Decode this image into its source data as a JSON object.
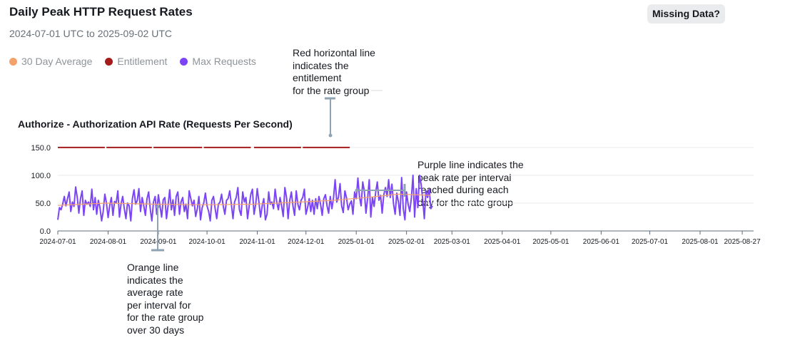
{
  "header": {
    "title": "Daily Peak HTTP Request Rates",
    "date_range": "2024-07-01 UTC to 2025-09-02 UTC",
    "missing_data_label": "Missing Data?"
  },
  "legend": [
    {
      "label": "30 Day Average",
      "color": "#f4a26c"
    },
    {
      "label": "Entitlement",
      "color": "#a51b1b"
    },
    {
      "label": "Max Requests",
      "color": "#7b45f5"
    }
  ],
  "annotations": {
    "red": [
      "Red horizontal line",
      "indicates the",
      "entitlement",
      "for the rate group"
    ],
    "purple": [
      "Purple line indicates the",
      "peak rate per interval",
      "reached during each",
      "day for the rate group"
    ],
    "orange": [
      "Orange line",
      "indicates the",
      "average rate",
      "per interval for",
      "for the rate group",
      "over 30 days"
    ]
  },
  "chart_data": {
    "type": "line",
    "title": "Authorize - Authorization API Rate (Requests Per Second)",
    "x_start": "2024-07-01",
    "xlim": [
      "2024-07-01",
      "2025-09-03"
    ],
    "ylim": [
      0,
      160
    ],
    "yticks": [
      0,
      50,
      100,
      150
    ],
    "ytick_labels": [
      "0.0",
      "50.0",
      "100.0",
      "150.0"
    ],
    "xticks": [
      "2024-07-01",
      "2024-08-01",
      "2024-09-01",
      "2024-10-01",
      "2024-11-01",
      "2024-12-01",
      "2025-01-01",
      "2025-02-01",
      "2025-03-01",
      "2025-04-01",
      "2025-05-01",
      "2025-06-01",
      "2025-07-01",
      "2025-08-01",
      "2025-08-27"
    ],
    "grid": true,
    "legend_position": "top-left",
    "series": [
      {
        "name": "Entitlement",
        "color": "#a51b1b",
        "segments": [
          {
            "start": "2024-07-01",
            "end": "2024-07-30",
            "value": 150
          },
          {
            "start": "2024-07-31",
            "end": "2024-08-28",
            "value": 150
          },
          {
            "start": "2024-08-29",
            "end": "2024-09-28",
            "value": 150
          },
          {
            "start": "2024-09-29",
            "end": "2024-10-28",
            "value": 150
          },
          {
            "start": "2024-10-30",
            "end": "2024-11-28",
            "value": 150
          },
          {
            "start": "2024-11-29",
            "end": "2024-12-28",
            "value": 150
          }
        ]
      },
      {
        "name": "Max Requests",
        "color": "#7b45f5",
        "values": [
          20,
          42,
          38,
          48,
          62,
          45,
          58,
          70,
          35,
          52,
          44,
          79,
          60,
          32,
          58,
          72,
          28,
          55,
          48,
          52,
          44,
          75,
          38,
          60,
          30,
          55,
          42,
          18,
          35,
          66,
          50,
          24,
          45,
          60,
          28,
          53,
          50,
          72,
          25,
          48,
          62,
          40,
          22,
          50,
          45,
          18,
          58,
          74,
          48,
          55,
          76,
          35,
          60,
          45,
          28,
          58,
          70,
          40,
          18,
          52,
          62,
          30,
          65,
          45,
          25,
          56,
          60,
          22,
          45,
          74,
          38,
          56,
          28,
          62,
          70,
          30,
          52,
          60,
          35,
          48,
          22,
          72,
          58,
          45,
          55,
          26,
          40,
          62,
          20,
          42,
          50,
          68,
          45,
          35,
          18,
          55,
          62,
          40,
          22,
          48,
          52,
          66,
          45,
          30,
          55,
          58,
          72,
          48,
          22,
          52,
          60,
          78,
          38,
          28,
          70,
          52,
          60,
          22,
          45,
          66,
          75,
          30,
          48,
          76,
          52,
          25,
          45,
          58,
          20,
          30,
          70,
          48,
          52,
          40,
          75,
          52,
          38,
          60,
          45,
          26,
          78,
          60,
          22,
          55,
          70,
          45,
          28,
          72,
          48,
          38,
          55,
          60,
          75,
          30,
          42,
          58,
          35,
          55,
          30,
          58,
          40,
          62,
          48,
          28,
          58,
          65,
          45,
          32,
          62,
          40,
          60,
          92,
          52,
          60,
          85,
          45,
          33,
          72,
          60,
          38,
          48,
          54,
          30,
          70,
          58,
          95,
          62,
          45,
          88,
          72,
          32,
          58,
          92,
          25,
          60,
          44,
          70,
          88,
          55,
          64,
          32,
          65,
          78,
          62,
          92,
          60,
          84,
          48,
          30,
          68,
          52,
          28,
          96,
          40,
          20,
          70,
          48,
          35,
          60,
          100,
          25,
          76,
          42,
          100,
          84,
          56,
          22,
          72,
          60,
          75,
          40,
          45
        ]
      },
      {
        "name": "30 Day Average",
        "color": "#f4a26c",
        "points": [
          {
            "day": 0,
            "value": 46
          },
          {
            "day": 30,
            "value": 50
          },
          {
            "day": 60,
            "value": 48
          },
          {
            "day": 90,
            "value": 47
          },
          {
            "day": 120,
            "value": 48
          },
          {
            "day": 150,
            "value": 52
          },
          {
            "day": 170,
            "value": 55
          },
          {
            "day": 190,
            "value": 60
          },
          {
            "day": 210,
            "value": 66
          },
          {
            "day": 230,
            "value": 64
          }
        ]
      }
    ]
  }
}
